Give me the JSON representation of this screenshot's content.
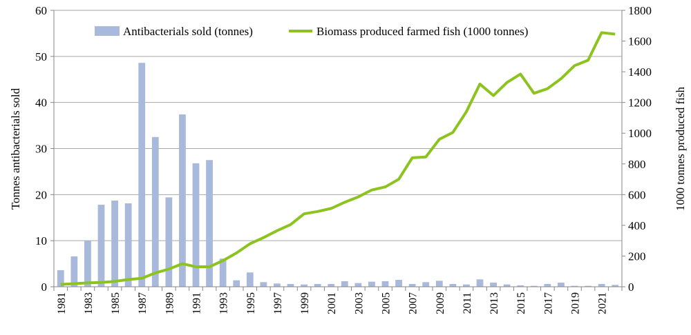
{
  "chart_data": {
    "type": "bar+line",
    "title": "",
    "xlabel": "",
    "ylabel": "Tonnes antibacterials sold",
    "y2label": "1000 tonnes produced fish",
    "ylim": [
      0,
      60
    ],
    "y2lim": [
      0,
      1800
    ],
    "yticks": [
      0,
      10,
      20,
      30,
      40,
      50,
      60
    ],
    "y2ticks": [
      0,
      200,
      400,
      600,
      800,
      1000,
      1200,
      1400,
      1600,
      1800
    ],
    "grid": true,
    "legend_position": "top",
    "categories": [
      "1981",
      "1982",
      "1983",
      "1984",
      "1985",
      "1986",
      "1987",
      "1988",
      "1989",
      "1990",
      "1991",
      "1992",
      "1993",
      "1994",
      "1995",
      "1996",
      "1997",
      "1998",
      "1999",
      "2000",
      "2001",
      "2002",
      "2003",
      "2004",
      "2005",
      "2006",
      "2007",
      "2008",
      "2009",
      "2010",
      "2011",
      "2012",
      "2013",
      "2014",
      "2015",
      "2016",
      "2017",
      "2018",
      "2019",
      "2020",
      "2021",
      "2022"
    ],
    "series": [
      {
        "name": "Antibacterials sold (tonnes)",
        "type": "bar",
        "axis": "left",
        "color": "#a9b9dc",
        "values": [
          3.6,
          6.6,
          10,
          17.8,
          18.7,
          18.1,
          48.6,
          32.5,
          19.4,
          37.4,
          26.8,
          27.5,
          6.1,
          1.4,
          3.1,
          1.0,
          0.7,
          0.6,
          0.5,
          0.6,
          0.6,
          1.2,
          0.8,
          1.1,
          1.2,
          1.5,
          0.6,
          1.0,
          1.3,
          0.6,
          0.5,
          1.6,
          0.9,
          0.5,
          0.3,
          0.2,
          0.6,
          0.9,
          0.2,
          0.2,
          0.6,
          0.4
        ]
      },
      {
        "name": "Biomass produced farmed fish (1000 tonnes)",
        "type": "line",
        "axis": "right",
        "color": "#8cc31e",
        "values": [
          15,
          20,
          25,
          28,
          35,
          47,
          55,
          90,
          115,
          150,
          130,
          130,
          170,
          220,
          280,
          320,
          365,
          405,
          475,
          490,
          510,
          550,
          585,
          630,
          650,
          700,
          840,
          845,
          960,
          1005,
          1140,
          1320,
          1245,
          1330,
          1385,
          1260,
          1290,
          1355,
          1440,
          1475,
          1655,
          1645
        ]
      }
    ]
  }
}
